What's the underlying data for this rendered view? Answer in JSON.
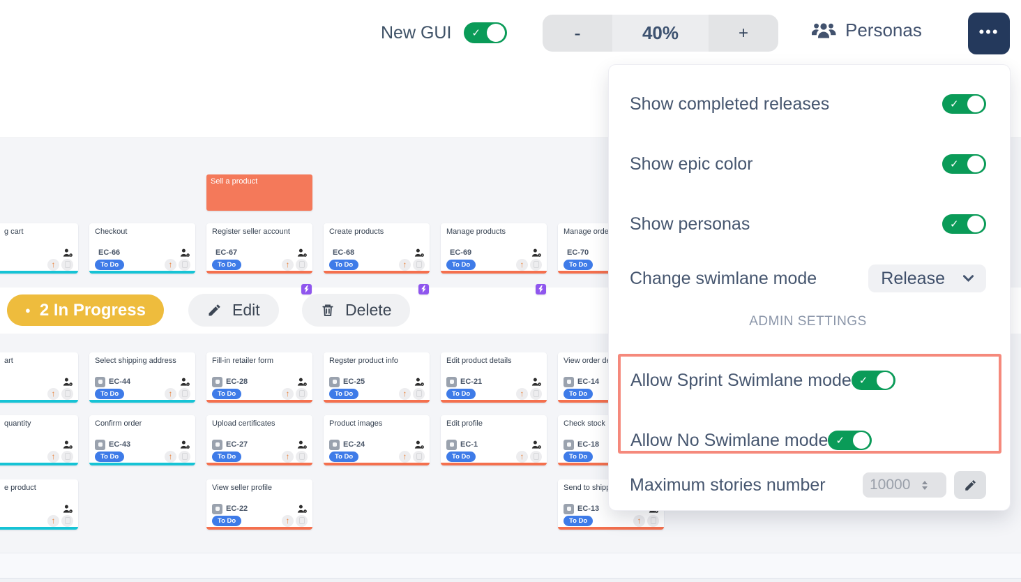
{
  "topbar": {
    "new_gui_label": "New GUI",
    "new_gui_on": true,
    "zoom": {
      "minus": "-",
      "level": "40%",
      "plus": "+"
    },
    "personas_label": "Personas",
    "more_label": "•••"
  },
  "settings_panel": {
    "toggles": [
      {
        "label": "Show completed releases",
        "on": true
      },
      {
        "label": "Show epic color",
        "on": true
      },
      {
        "label": "Show personas",
        "on": true
      }
    ],
    "swimlane": {
      "label": "Change swimlane mode",
      "value": "Release"
    },
    "admin_heading": "ADMIN SETTINGS",
    "admin_toggles": [
      {
        "label": "Allow Sprint Swimlane mode",
        "on": true
      },
      {
        "label": "Allow No Swimlane mode",
        "on": true
      }
    ],
    "max_stories": {
      "label": "Maximum stories number",
      "value": "10000"
    }
  },
  "board": {
    "epic": {
      "title": "Sell a product"
    },
    "release_badge": {
      "bullet": "●",
      "label": "2 In Progress"
    },
    "edit_label": "Edit",
    "delete_label": "Delete",
    "cards": [
      {
        "row": 0,
        "col": 0,
        "cut": true,
        "title": "g cart",
        "accent": "cyan"
      },
      {
        "row": 0,
        "col": 1,
        "title": "Checkout",
        "id": "EC-66",
        "status": "To Do",
        "type": "epic",
        "accent": "cyan"
      },
      {
        "row": 0,
        "col": 2,
        "title": "Register seller account",
        "id": "EC-67",
        "status": "To Do",
        "type": "epic",
        "accent": "orange"
      },
      {
        "row": 0,
        "col": 3,
        "title": "Create products",
        "id": "EC-68",
        "status": "To Do",
        "type": "epic",
        "accent": "orange"
      },
      {
        "row": 0,
        "col": 4,
        "title": "Manage products",
        "id": "EC-69",
        "status": "To Do",
        "type": "epic",
        "accent": "orange"
      },
      {
        "row": 0,
        "col": 5,
        "title": "Manage order",
        "id": "EC-70",
        "status": "To Do",
        "type": "epic",
        "accent": "orange"
      },
      {
        "row": 1,
        "col": 0,
        "cut": true,
        "title": "art",
        "accent": "cyan"
      },
      {
        "row": 1,
        "col": 1,
        "title": "Select shipping address",
        "id": "EC-44",
        "status": "To Do",
        "type": "story",
        "accent": "cyan"
      },
      {
        "row": 1,
        "col": 2,
        "title": "Fill-in retailer form",
        "id": "EC-28",
        "status": "To Do",
        "type": "story",
        "accent": "orange"
      },
      {
        "row": 1,
        "col": 3,
        "title": "Regster product info",
        "id": "EC-25",
        "status": "To Do",
        "type": "story",
        "accent": "orange"
      },
      {
        "row": 1,
        "col": 4,
        "title": "Edit product details",
        "id": "EC-21",
        "status": "To Do",
        "type": "story",
        "accent": "orange"
      },
      {
        "row": 1,
        "col": 5,
        "title": "View order deta",
        "id": "EC-14",
        "status": "To Do",
        "type": "story",
        "accent": "orange"
      },
      {
        "row": 2,
        "col": 0,
        "cut": true,
        "title": "quantity",
        "accent": "cyan"
      },
      {
        "row": 2,
        "col": 1,
        "title": "Confirm order",
        "id": "EC-43",
        "status": "To Do",
        "type": "story",
        "accent": "cyan"
      },
      {
        "row": 2,
        "col": 2,
        "title": "Upload certificates",
        "id": "EC-27",
        "status": "To Do",
        "type": "story",
        "accent": "orange"
      },
      {
        "row": 2,
        "col": 3,
        "title": "Product images",
        "id": "EC-24",
        "status": "To Do",
        "type": "story",
        "accent": "orange"
      },
      {
        "row": 2,
        "col": 4,
        "title": "Edit profile",
        "id": "EC-1",
        "status": "To Do",
        "type": "story",
        "accent": "orange"
      },
      {
        "row": 2,
        "col": 5,
        "title": "Check stock",
        "id": "EC-18",
        "status": "To Do",
        "type": "story",
        "accent": "orange"
      },
      {
        "row": 3,
        "col": 0,
        "cut": true,
        "title": "e product",
        "accent": "cyan"
      },
      {
        "row": 3,
        "col": 2,
        "title": "View seller profile",
        "id": "EC-22",
        "status": "To Do",
        "type": "story",
        "accent": "orange"
      },
      {
        "row": 3,
        "col": 5,
        "title": "Send to shippin",
        "id": "EC-13",
        "status": "To Do",
        "type": "story",
        "accent": "orange"
      }
    ]
  },
  "colors": {
    "toggle_on": "#0a9b58",
    "epic_card": "#f4795a",
    "accent_cyan": "#16c3d5",
    "accent_orange": "#f4704e",
    "status_todo": "#3e7be8",
    "epic_badge": "#8f56ee",
    "story_badge": "#9aa2ae",
    "release_badge": "#eebc3d",
    "highlight_border": "#f5897c",
    "priority_arrow": "#e8823c",
    "more_button": "#24395c"
  }
}
